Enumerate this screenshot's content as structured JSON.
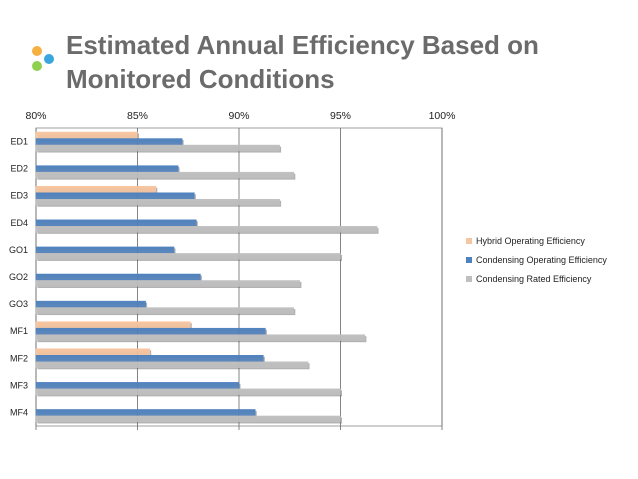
{
  "slide": {
    "title_line1": "Estimated Annual Efficiency Based on",
    "title_line2": "Monitored Conditions"
  },
  "decor": {
    "dots": [
      {
        "name": "orange-dot",
        "color": "#f5b041"
      },
      {
        "name": "blue-dot",
        "color": "#3aa6dd"
      },
      {
        "name": "green-dot",
        "color": "#8fd14f"
      }
    ]
  },
  "chart_data": {
    "type": "bar",
    "orientation": "horizontal",
    "title": "",
    "xlabel": "",
    "ylabel": "",
    "xlim": [
      0.8,
      1.0
    ],
    "x_ticks": [
      "80%",
      "85%",
      "90%",
      "95%",
      "100%"
    ],
    "x_tick_values": [
      0.8,
      0.85,
      0.9,
      0.95,
      1.0
    ],
    "x_axis_position": "top",
    "grid": true,
    "legend_position": "right",
    "categories": [
      "ED1",
      "ED2",
      "ED3",
      "ED4",
      "GO1",
      "GO2",
      "GO3",
      "MF1",
      "MF2",
      "MF3",
      "MF4"
    ],
    "series": [
      {
        "name": "Hybrid Operating Efficiency",
        "color": "#f7c59f",
        "values": [
          0.85,
          null,
          0.859,
          null,
          null,
          null,
          null,
          0.876,
          0.856,
          null,
          null
        ]
      },
      {
        "name": "Condensing Operating Efficiency",
        "color": "#4f81bd",
        "values": [
          0.872,
          0.87,
          0.878,
          0.879,
          0.868,
          0.881,
          0.854,
          0.913,
          0.912,
          0.9,
          0.908
        ]
      },
      {
        "name": "Condensing Rated Efficiency",
        "color": "#bfbfbf",
        "values": [
          0.92,
          0.927,
          0.92,
          0.968,
          0.95,
          0.93,
          0.927,
          0.962,
          0.934,
          0.95,
          0.95
        ]
      }
    ]
  }
}
